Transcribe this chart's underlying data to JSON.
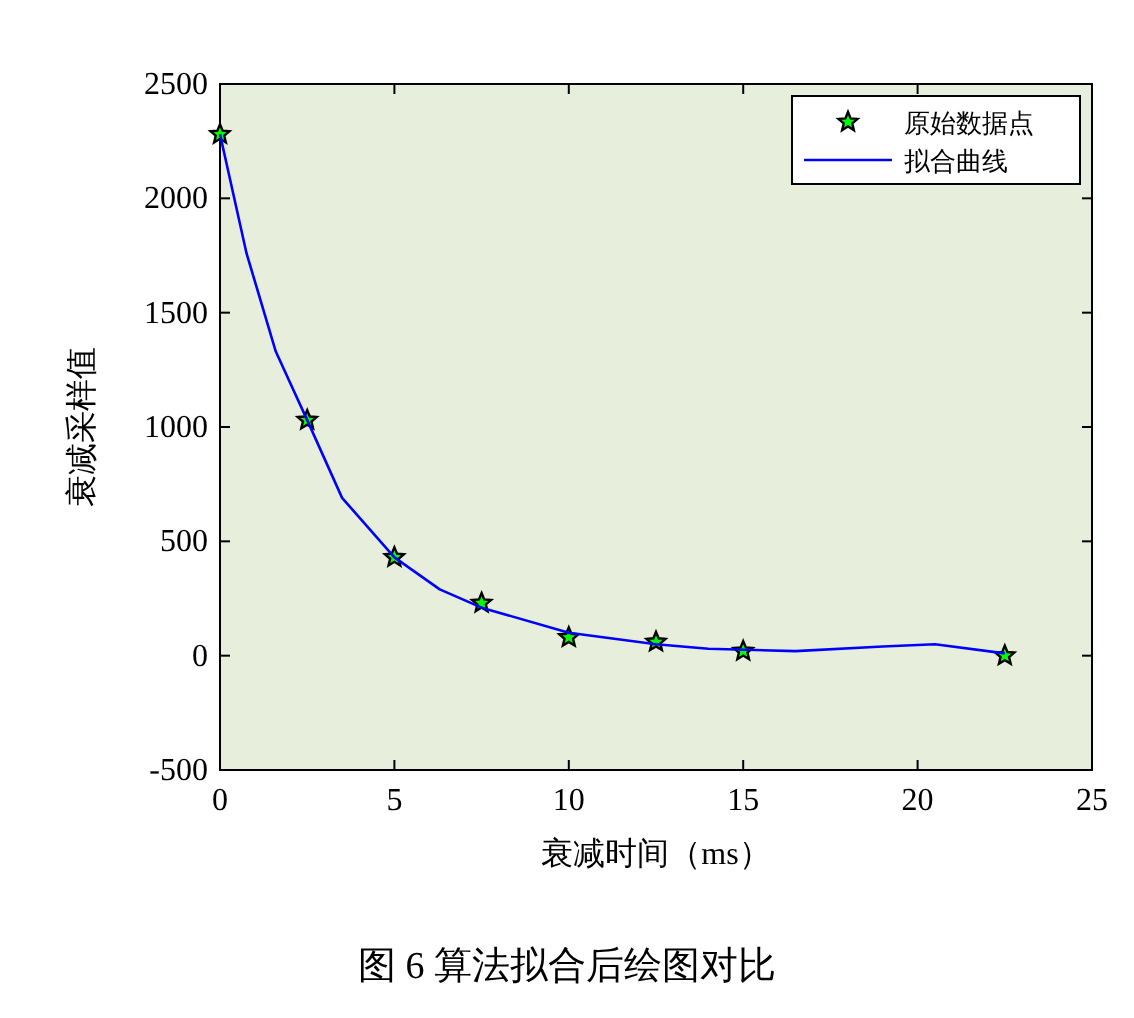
{
  "chart_data": {
    "type": "line",
    "xlabel": "衰减时间（ms）",
    "ylabel": "衰减采样值",
    "annotations": [
      "图 6 算法拟合后绘图对比"
    ],
    "xlim": [
      0,
      25
    ],
    "xticks": [
      0,
      5,
      10,
      15,
      20,
      25
    ],
    "ylim": [
      -500,
      2500
    ],
    "yticks": [
      -500,
      0,
      500,
      1000,
      1500,
      2000,
      2500
    ],
    "grid": false,
    "legend": "top right",
    "series": [
      {
        "name": "原始数据点",
        "type": "scatter",
        "marker": "star",
        "color": "#00ff00",
        "x": [
          0,
          2.5,
          5,
          7.5,
          10,
          12.5,
          15,
          22.5
        ],
        "values": [
          2280,
          1030,
          430,
          230,
          80,
          60,
          20,
          0
        ]
      },
      {
        "name": "拟合曲线",
        "marker": "none",
        "color": "#0000ff",
        "x": [
          0,
          0.76,
          1.6,
          2.5,
          3.5,
          5,
          6.3,
          7.5,
          10,
          12.5,
          14,
          16.5,
          19,
          20.5,
          22.5
        ],
        "values": [
          2280,
          1760,
          1330,
          1030,
          690,
          430,
          290,
          210,
          100,
          50,
          30,
          20,
          40,
          50,
          10
        ]
      }
    ]
  }
}
